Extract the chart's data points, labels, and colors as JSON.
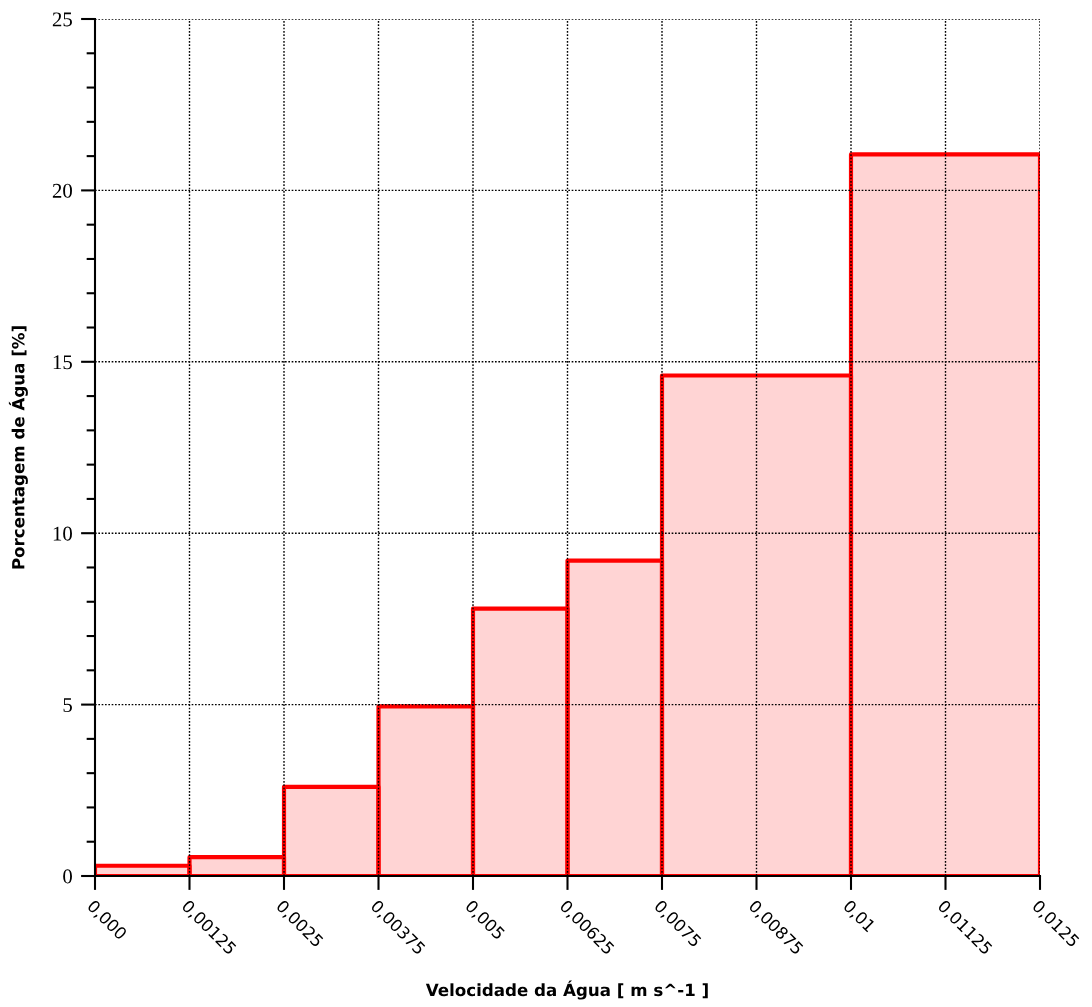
{
  "chart_data": {
    "type": "histogram",
    "xlabel": "Velocidade da Água [ m s^-1 ]",
    "ylabel": "Porcentagem de Água [%]",
    "bins": [
      0,
      0.00125,
      0.0025,
      0.00375,
      0.005,
      0.00625,
      0.0075,
      0.01,
      0.0125
    ],
    "values": [
      0.3,
      0.55,
      2.6,
      4.95,
      7.8,
      9.2,
      14.6,
      21.05
    ],
    "color": "#ff0000",
    "xlim": [
      0,
      0.0125
    ],
    "ylim": [
      0,
      25
    ],
    "xticks": [
      {
        "value": 0,
        "label": "0,000"
      },
      {
        "value": 0.00125,
        "label": "0,00125"
      },
      {
        "value": 0.0025,
        "label": "0,0025"
      },
      {
        "value": 0.00375,
        "label": "0,00375"
      },
      {
        "value": 0.005,
        "label": "0,005"
      },
      {
        "value": 0.00625,
        "label": "0,00625"
      },
      {
        "value": 0.0075,
        "label": "0,0075"
      },
      {
        "value": 0.00875,
        "label": "0,00875"
      },
      {
        "value": 0.01,
        "label": "0,01"
      },
      {
        "value": 0.01125,
        "label": "0,01125"
      },
      {
        "value": 0.0125,
        "label": "0,0125"
      }
    ],
    "yticks": [
      0,
      {
        "value": 1,
        "label": null
      },
      {
        "value": 2,
        "label": null
      },
      {
        "value": 3,
        "label": null
      },
      {
        "value": 4,
        "label": null
      },
      5,
      {
        "value": 6,
        "label": null
      },
      {
        "value": 7,
        "label": null
      },
      {
        "value": 8,
        "label": null
      },
      {
        "value": 9,
        "label": null
      },
      10,
      {
        "value": 11,
        "label": null
      },
      {
        "value": 12,
        "label": null
      },
      {
        "value": 13,
        "label": null
      },
      {
        "value": 14,
        "label": null
      },
      15,
      {
        "value": 16,
        "label": null
      },
      {
        "value": 17,
        "label": null
      },
      {
        "value": 18,
        "label": null
      },
      {
        "value": 19,
        "label": null
      },
      20,
      {
        "value": 21,
        "label": null
      },
      {
        "value": 22,
        "label": null
      },
      {
        "value": 23,
        "label": null
      },
      {
        "value": 24,
        "label": null
      },
      25
    ],
    "grid": true
  }
}
